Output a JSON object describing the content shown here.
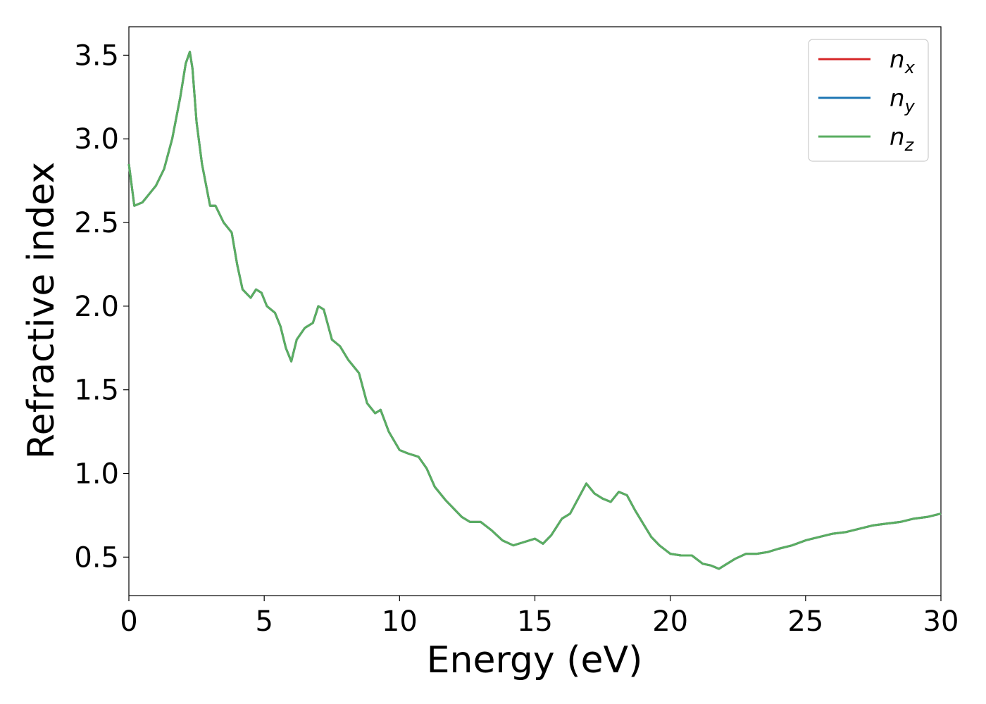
{
  "chart_data": {
    "type": "line",
    "title": "",
    "xlabel": "Energy (eV)",
    "ylabel": "Refractive index",
    "xlim": [
      0,
      30
    ],
    "ylim": [
      0.27,
      3.67
    ],
    "xticks": [
      0,
      5,
      10,
      15,
      20,
      25,
      30
    ],
    "xtick_labels": [
      "0",
      "5",
      "10",
      "15",
      "20",
      "25",
      "30"
    ],
    "yticks": [
      0.5,
      1.0,
      1.5,
      2.0,
      2.5,
      3.0,
      3.5
    ],
    "ytick_labels": [
      "0.5",
      "1.0",
      "1.5",
      "2.0",
      "2.5",
      "3.0",
      "3.5"
    ],
    "grid": false,
    "legend_position": "top-right",
    "series": [
      {
        "name": "n_x",
        "color": "#d62728",
        "x": [
          0,
          0.2,
          0.5,
          0.8,
          1.0,
          1.3,
          1.6,
          1.9,
          2.1,
          2.25,
          2.35,
          2.5,
          2.7,
          3.0,
          3.2,
          3.5,
          3.8,
          4.0,
          4.2,
          4.5,
          4.7,
          4.9,
          5.1,
          5.4,
          5.6,
          5.8,
          6.0,
          6.2,
          6.5,
          6.8,
          7.0,
          7.2,
          7.5,
          7.8,
          8.1,
          8.5,
          8.8,
          9.1,
          9.3,
          9.6,
          10.0,
          10.3,
          10.7,
          11.0,
          11.3,
          11.7,
          12.0,
          12.3,
          12.6,
          13.0,
          13.4,
          13.8,
          14.2,
          14.6,
          15.0,
          15.3,
          15.6,
          16.0,
          16.3,
          16.6,
          16.9,
          17.2,
          17.5,
          17.8,
          18.1,
          18.4,
          18.7,
          19.0,
          19.3,
          19.6,
          20.0,
          20.4,
          20.8,
          21.2,
          21.5,
          21.8,
          22.0,
          22.4,
          22.8,
          23.2,
          23.6,
          24.0,
          24.5,
          25.0,
          25.5,
          26.0,
          26.5,
          27.0,
          27.5,
          28.0,
          28.5,
          29.0,
          29.5,
          30.0
        ],
        "y": [
          2.85,
          2.6,
          2.62,
          2.68,
          2.72,
          2.82,
          3.0,
          3.25,
          3.45,
          3.52,
          3.42,
          3.1,
          2.85,
          2.6,
          2.6,
          2.5,
          2.44,
          2.25,
          2.1,
          2.05,
          2.1,
          2.08,
          2.0,
          1.96,
          1.88,
          1.75,
          1.67,
          1.8,
          1.87,
          1.9,
          2.0,
          1.98,
          1.8,
          1.76,
          1.68,
          1.6,
          1.42,
          1.36,
          1.38,
          1.25,
          1.14,
          1.12,
          1.1,
          1.03,
          0.92,
          0.84,
          0.79,
          0.74,
          0.71,
          0.71,
          0.66,
          0.6,
          0.57,
          0.59,
          0.61,
          0.58,
          0.63,
          0.73,
          0.76,
          0.85,
          0.94,
          0.88,
          0.85,
          0.83,
          0.89,
          0.87,
          0.78,
          0.7,
          0.62,
          0.57,
          0.52,
          0.51,
          0.51,
          0.46,
          0.45,
          0.43,
          0.45,
          0.49,
          0.52,
          0.52,
          0.53,
          0.55,
          0.57,
          0.6,
          0.62,
          0.64,
          0.65,
          0.67,
          0.69,
          0.7,
          0.71,
          0.73,
          0.74,
          0.76
        ]
      },
      {
        "name": "n_y",
        "color": "#1f77b4",
        "x": [
          0,
          0.2,
          0.5,
          0.8,
          1.0,
          1.3,
          1.6,
          1.9,
          2.1,
          2.25,
          2.35,
          2.5,
          2.7,
          3.0,
          3.2,
          3.5,
          3.8,
          4.0,
          4.2,
          4.5,
          4.7,
          4.9,
          5.1,
          5.4,
          5.6,
          5.8,
          6.0,
          6.2,
          6.5,
          6.8,
          7.0,
          7.2,
          7.5,
          7.8,
          8.1,
          8.5,
          8.8,
          9.1,
          9.3,
          9.6,
          10.0,
          10.3,
          10.7,
          11.0,
          11.3,
          11.7,
          12.0,
          12.3,
          12.6,
          13.0,
          13.4,
          13.8,
          14.2,
          14.6,
          15.0,
          15.3,
          15.6,
          16.0,
          16.3,
          16.6,
          16.9,
          17.2,
          17.5,
          17.8,
          18.1,
          18.4,
          18.7,
          19.0,
          19.3,
          19.6,
          20.0,
          20.4,
          20.8,
          21.2,
          21.5,
          21.8,
          22.0,
          22.4,
          22.8,
          23.2,
          23.6,
          24.0,
          24.5,
          25.0,
          25.5,
          26.0,
          26.5,
          27.0,
          27.5,
          28.0,
          28.5,
          29.0,
          29.5,
          30.0
        ],
        "y": [
          2.85,
          2.6,
          2.62,
          2.68,
          2.72,
          2.82,
          3.0,
          3.25,
          3.45,
          3.52,
          3.42,
          3.1,
          2.85,
          2.6,
          2.6,
          2.5,
          2.44,
          2.25,
          2.1,
          2.05,
          2.1,
          2.08,
          2.0,
          1.96,
          1.88,
          1.75,
          1.67,
          1.8,
          1.87,
          1.9,
          2.0,
          1.98,
          1.8,
          1.76,
          1.68,
          1.6,
          1.42,
          1.36,
          1.38,
          1.25,
          1.14,
          1.12,
          1.1,
          1.03,
          0.92,
          0.84,
          0.79,
          0.74,
          0.71,
          0.71,
          0.66,
          0.6,
          0.57,
          0.59,
          0.61,
          0.58,
          0.63,
          0.73,
          0.76,
          0.85,
          0.94,
          0.88,
          0.85,
          0.83,
          0.89,
          0.87,
          0.78,
          0.7,
          0.62,
          0.57,
          0.52,
          0.51,
          0.51,
          0.46,
          0.45,
          0.43,
          0.45,
          0.49,
          0.52,
          0.52,
          0.53,
          0.55,
          0.57,
          0.6,
          0.62,
          0.64,
          0.65,
          0.67,
          0.69,
          0.7,
          0.71,
          0.73,
          0.74,
          0.76
        ]
      },
      {
        "name": "n_z",
        "color": "#5aae61",
        "x": [
          0,
          0.2,
          0.5,
          0.8,
          1.0,
          1.3,
          1.6,
          1.9,
          2.1,
          2.25,
          2.35,
          2.5,
          2.7,
          3.0,
          3.2,
          3.5,
          3.8,
          4.0,
          4.2,
          4.5,
          4.7,
          4.9,
          5.1,
          5.4,
          5.6,
          5.8,
          6.0,
          6.2,
          6.5,
          6.8,
          7.0,
          7.2,
          7.5,
          7.8,
          8.1,
          8.5,
          8.8,
          9.1,
          9.3,
          9.6,
          10.0,
          10.3,
          10.7,
          11.0,
          11.3,
          11.7,
          12.0,
          12.3,
          12.6,
          13.0,
          13.4,
          13.8,
          14.2,
          14.6,
          15.0,
          15.3,
          15.6,
          16.0,
          16.3,
          16.6,
          16.9,
          17.2,
          17.5,
          17.8,
          18.1,
          18.4,
          18.7,
          19.0,
          19.3,
          19.6,
          20.0,
          20.4,
          20.8,
          21.2,
          21.5,
          21.8,
          22.0,
          22.4,
          22.8,
          23.2,
          23.6,
          24.0,
          24.5,
          25.0,
          25.5,
          26.0,
          26.5,
          27.0,
          27.5,
          28.0,
          28.5,
          29.0,
          29.5,
          30.0
        ],
        "y": [
          2.85,
          2.6,
          2.62,
          2.68,
          2.72,
          2.82,
          3.0,
          3.25,
          3.45,
          3.52,
          3.42,
          3.1,
          2.85,
          2.6,
          2.6,
          2.5,
          2.44,
          2.25,
          2.1,
          2.05,
          2.1,
          2.08,
          2.0,
          1.96,
          1.88,
          1.75,
          1.67,
          1.8,
          1.87,
          1.9,
          2.0,
          1.98,
          1.8,
          1.76,
          1.68,
          1.6,
          1.42,
          1.36,
          1.38,
          1.25,
          1.14,
          1.12,
          1.1,
          1.03,
          0.92,
          0.84,
          0.79,
          0.74,
          0.71,
          0.71,
          0.66,
          0.6,
          0.57,
          0.59,
          0.61,
          0.58,
          0.63,
          0.73,
          0.76,
          0.85,
          0.94,
          0.88,
          0.85,
          0.83,
          0.89,
          0.87,
          0.78,
          0.7,
          0.62,
          0.57,
          0.52,
          0.51,
          0.51,
          0.46,
          0.45,
          0.43,
          0.45,
          0.49,
          0.52,
          0.52,
          0.53,
          0.55,
          0.57,
          0.6,
          0.62,
          0.64,
          0.65,
          0.67,
          0.69,
          0.7,
          0.71,
          0.73,
          0.74,
          0.76
        ]
      }
    ],
    "legend": [
      {
        "base": "n",
        "sub": "x",
        "color": "#d62728"
      },
      {
        "base": "n",
        "sub": "y",
        "color": "#1f77b4"
      },
      {
        "base": "n",
        "sub": "z",
        "color": "#5aae61"
      }
    ]
  }
}
